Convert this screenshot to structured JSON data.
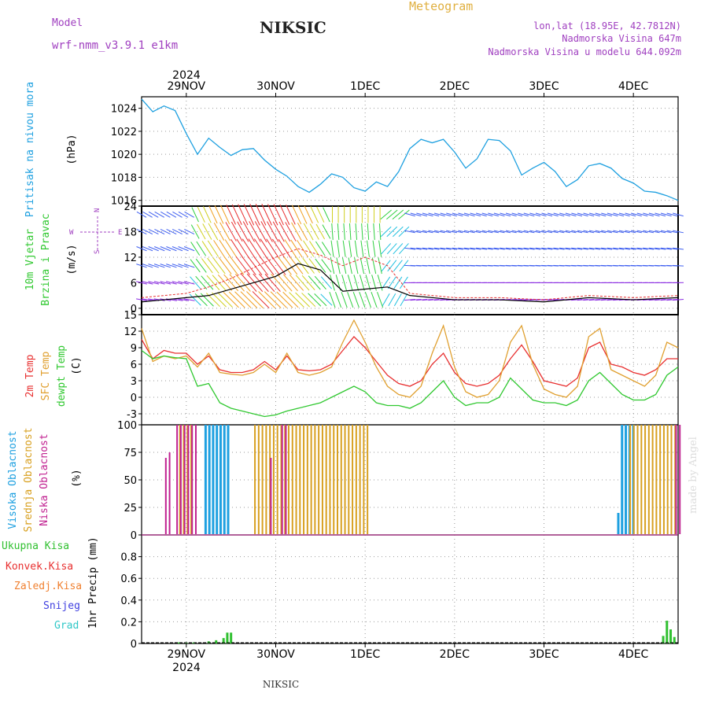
{
  "header": {
    "model_label": "Model",
    "model_name": "wrf-nmm_v3.9.1 e1km",
    "station": "NIKSIC",
    "title": "Meteogram",
    "coords": "lon,lat (18.95E, 42.7812N)",
    "elevation": "Nadmorska Visina 647m",
    "model_elevation": "Nadmorska Visina u modelu 644.092m",
    "footer_station": "NIKSIC",
    "credit": "made by Angel"
  },
  "colors": {
    "pressure": "#1ea0e0",
    "temp2m": "#e83030",
    "sfc_temp": "#e0a030",
    "dewpt": "#30c830",
    "cloud_high": "#1ea0e0",
    "cloud_mid": "#d8a020",
    "cloud_low": "#c02090",
    "precip": "#30c030",
    "wind_speed": "#000000",
    "gust": "#e83030",
    "header_purple": "#a040c0",
    "header_orange": "#e0b040"
  },
  "chart_data": [
    {
      "id": "pressure",
      "type": "line",
      "ylabel": "Pritisak na nivou mora",
      "unit": "(hPa)",
      "ylim": [
        1015.5,
        1025
      ],
      "yticks": [
        1016,
        1018,
        1020,
        1022,
        1024
      ],
      "x_hours": [
        0,
        3,
        6,
        9,
        12,
        15,
        18,
        21,
        24,
        27,
        30,
        33,
        36,
        39,
        42,
        45,
        48,
        51,
        54,
        57,
        60,
        63,
        66,
        69,
        72,
        75,
        78,
        81,
        84,
        87,
        90,
        93,
        96,
        99,
        102,
        105,
        108,
        111,
        114,
        117,
        120,
        123,
        126,
        129,
        132,
        135,
        138,
        141,
        144
      ],
      "values": [
        1024.8,
        1023.7,
        1024.2,
        1023.8,
        1021.8,
        1020.0,
        1021.4,
        1020.6,
        1019.9,
        1020.4,
        1020.5,
        1019.5,
        1018.7,
        1018.1,
        1017.2,
        1016.7,
        1017.4,
        1018.3,
        1018.0,
        1017.1,
        1016.8,
        1017.6,
        1017.2,
        1018.5,
        1020.5,
        1021.3,
        1021.0,
        1021.3,
        1020.2,
        1018.8,
        1019.6,
        1021.3,
        1021.2,
        1020.3,
        1018.2,
        1018.8,
        1019.3,
        1018.5,
        1017.2,
        1017.8,
        1019.0,
        1019.2,
        1018.8,
        1017.9,
        1017.5,
        1016.8,
        1016.7,
        1016.4,
        1016.0
      ]
    },
    {
      "id": "wind",
      "type": "line",
      "ylabel": "10m Vjetar Brzina i Pravac",
      "unit": "(m/s)",
      "ylim": [
        -1.5,
        24
      ],
      "yticks": [
        0,
        6,
        12,
        18,
        24
      ],
      "legend": [
        "W",
        "S",
        "N",
        "E"
      ],
      "x_hours": [
        0,
        6,
        12,
        18,
        24,
        30,
        36,
        42,
        48,
        54,
        60,
        66,
        72,
        84,
        96,
        108,
        120,
        132,
        144
      ],
      "values": [
        1.5,
        2.0,
        2.5,
        3.0,
        4.5,
        6.0,
        7.5,
        10.5,
        9.0,
        4.0,
        4.5,
        5.0,
        3.0,
        2.0,
        2.0,
        1.5,
        2.5,
        2.0,
        2.5
      ],
      "gust": [
        2.5,
        3.0,
        3.5,
        5.0,
        7.0,
        9.5,
        12.0,
        14.0,
        12.5,
        10.0,
        12.0,
        10.0,
        3.5,
        2.5,
        2.5,
        2.0,
        3.0,
        2.5,
        3.0
      ]
    },
    {
      "id": "temperature",
      "type": "line",
      "ylabel": "2m Temp",
      "ylabel2": "SFC Temp",
      "ylabel3": "dewpt Temp",
      "unit": "(C)",
      "ylim": [
        -5,
        15
      ],
      "yticks": [
        -3,
        0,
        3,
        6,
        9,
        12,
        15
      ],
      "x_hours": [
        0,
        3,
        6,
        9,
        12,
        15,
        18,
        21,
        24,
        27,
        30,
        33,
        36,
        39,
        42,
        45,
        48,
        51,
        54,
        57,
        60,
        63,
        66,
        69,
        72,
        75,
        78,
        81,
        84,
        87,
        90,
        93,
        96,
        99,
        102,
        105,
        108,
        111,
        114,
        117,
        120,
        123,
        126,
        129,
        132,
        135,
        138,
        141,
        144
      ],
      "series": [
        {
          "name": "2m Temp",
          "values": [
            10.5,
            7.0,
            8.5,
            8.0,
            8.0,
            6.0,
            7.5,
            5.0,
            4.5,
            4.5,
            5.0,
            6.5,
            5.0,
            7.5,
            5.0,
            4.8,
            5.0,
            6.0,
            8.5,
            11.0,
            9.0,
            6.5,
            4.0,
            2.5,
            2.0,
            3.0,
            6.0,
            8.0,
            4.5,
            2.5,
            2.0,
            2.5,
            4.0,
            7.0,
            9.5,
            6.5,
            3.0,
            2.5,
            2.0,
            3.5,
            9.0,
            10.0,
            6.0,
            5.5,
            4.5,
            4.0,
            5.0,
            7.0,
            7.0
          ]
        },
        {
          "name": "SFC Temp",
          "values": [
            12.5,
            6.5,
            7.5,
            7.0,
            7.5,
            5.5,
            8.0,
            4.5,
            4.2,
            4.0,
            4.5,
            6.0,
            4.5,
            8.0,
            4.5,
            4.0,
            4.5,
            5.5,
            10.0,
            14.0,
            10.0,
            5.5,
            2.0,
            0.5,
            0.0,
            2.0,
            8.0,
            13.0,
            5.5,
            1.0,
            0.0,
            0.5,
            3.0,
            10.0,
            13.0,
            6.0,
            1.5,
            0.5,
            0.0,
            2.0,
            11.0,
            12.5,
            5.0,
            4.0,
            3.0,
            2.0,
            4.0,
            10.0,
            9.0
          ]
        },
        {
          "name": "dewpt Temp",
          "values": [
            8.5,
            7.0,
            7.5,
            7.2,
            7.0,
            2.0,
            2.5,
            -1.0,
            -2.0,
            -2.5,
            -3.0,
            -3.5,
            -3.2,
            -2.5,
            -2.0,
            -1.5,
            -1.0,
            0.0,
            1.0,
            2.0,
            1.0,
            -1.0,
            -1.5,
            -1.5,
            -2.0,
            -1.0,
            1.0,
            3.0,
            0.0,
            -1.5,
            -1.0,
            -1.0,
            0.0,
            3.5,
            1.5,
            -0.5,
            -1.0,
            -1.0,
            -1.5,
            -0.5,
            3.0,
            4.5,
            2.5,
            0.5,
            -0.5,
            -0.5,
            0.5,
            4.0,
            5.5
          ]
        }
      ]
    },
    {
      "id": "cloud",
      "type": "bar",
      "ylabel": "Visoka Oblacnost",
      "ylabel2": "Srednja Oblacnost",
      "ylabel3": "Niska Oblacnost",
      "unit": "(%)",
      "ylim": [
        0,
        100
      ],
      "yticks": [
        0,
        25,
        50,
        75,
        100
      ],
      "series": [
        {
          "name": "Visoka Oblacnost",
          "values": [
            0,
            0,
            0,
            0,
            0,
            0,
            0,
            0,
            0,
            0,
            0,
            0,
            0,
            0,
            0,
            0,
            0,
            100,
            100,
            100,
            100,
            100,
            100,
            100,
            0,
            0,
            0,
            0,
            0,
            0,
            0,
            0,
            0,
            0,
            0,
            0,
            0,
            0,
            0,
            0,
            0,
            0,
            0,
            0,
            0,
            0,
            0,
            0,
            0,
            0,
            0,
            0,
            0,
            0,
            0,
            0,
            0,
            0,
            0,
            0,
            0,
            0,
            0,
            0,
            0,
            0,
            0,
            0,
            0,
            0,
            0,
            0,
            0,
            0,
            0,
            0,
            0,
            0,
            0,
            0,
            0,
            0,
            0,
            0,
            0,
            0,
            0,
            0,
            0,
            0,
            0,
            0,
            0,
            0,
            0,
            0,
            0,
            0,
            0,
            0,
            0,
            0,
            0,
            0,
            0,
            0,
            0,
            0,
            0,
            0,
            0,
            0,
            0,
            0,
            0,
            0,
            0,
            0,
            0,
            0,
            0,
            0,
            0,
            0,
            0,
            0,
            0,
            20,
            100,
            100,
            100,
            100,
            0,
            0,
            0,
            0,
            0,
            0,
            0,
            0,
            0,
            0,
            0,
            0
          ]
        },
        {
          "name": "Srednja Oblacnost",
          "values": [
            0,
            0,
            0,
            0,
            0,
            0,
            0,
            0,
            0,
            0,
            100,
            100,
            100,
            100,
            0,
            0,
            0,
            0,
            0,
            0,
            0,
            0,
            0,
            0,
            0,
            0,
            0,
            0,
            0,
            0,
            100,
            100,
            100,
            100,
            100,
            100,
            100,
            100,
            100,
            100,
            100,
            100,
            100,
            100,
            100,
            100,
            100,
            100,
            100,
            100,
            100,
            100,
            100,
            100,
            100,
            100,
            100,
            100,
            100,
            100,
            100,
            0,
            0,
            0,
            0,
            0,
            0,
            0,
            0,
            0,
            0,
            0,
            0,
            0,
            0,
            0,
            0,
            0,
            0,
            0,
            0,
            0,
            0,
            0,
            0,
            0,
            0,
            0,
            0,
            0,
            0,
            0,
            0,
            0,
            0,
            0,
            0,
            0,
            0,
            0,
            0,
            0,
            0,
            0,
            0,
            0,
            0,
            0,
            0,
            0,
            0,
            0,
            0,
            0,
            0,
            0,
            0,
            0,
            0,
            0,
            0,
            0,
            0,
            0,
            0,
            0,
            0,
            0,
            0,
            0,
            100,
            100,
            100,
            100,
            100,
            100,
            100,
            100,
            100,
            100,
            100,
            100,
            100,
            0
          ]
        },
        {
          "name": "Niska Oblacnost",
          "values": [
            0,
            0,
            0,
            0,
            0,
            0,
            70,
            75,
            0,
            100,
            100,
            100,
            100,
            100,
            100,
            0,
            0,
            0,
            0,
            0,
            0,
            0,
            0,
            0,
            0,
            0,
            0,
            0,
            0,
            0,
            0,
            0,
            0,
            0,
            70,
            0,
            0,
            100,
            100,
            0,
            0,
            0,
            0,
            0,
            0,
            0,
            0,
            0,
            0,
            0,
            0,
            0,
            0,
            0,
            0,
            0,
            0,
            0,
            0,
            0,
            0,
            0,
            0,
            0,
            0,
            0,
            0,
            0,
            0,
            0,
            0,
            0,
            0,
            0,
            0,
            0,
            0,
            0,
            0,
            0,
            0,
            0,
            0,
            0,
            0,
            0,
            0,
            0,
            0,
            0,
            0,
            0,
            0,
            0,
            0,
            0,
            0,
            0,
            0,
            0,
            0,
            0,
            0,
            0,
            0,
            0,
            0,
            0,
            0,
            0,
            0,
            0,
            0,
            0,
            0,
            0,
            0,
            0,
            0,
            0,
            0,
            0,
            0,
            0,
            0,
            0,
            0,
            0,
            0,
            0,
            0,
            0,
            0,
            0,
            0,
            0,
            0,
            0,
            0,
            0,
            0,
            0,
            100,
            100
          ]
        }
      ]
    },
    {
      "id": "precip",
      "type": "bar",
      "ylabel": "1hr Precip",
      "unit": "(mm)",
      "ylim": [
        0,
        1.0
      ],
      "yticks": [
        0,
        0.2,
        0.4,
        0.6,
        0.8
      ],
      "legend": [
        "Ukupna Kisa",
        "Konvek.Kisa",
        "Zaledj.Kisa",
        "Snijeg",
        "Grad"
      ],
      "legend_colors": [
        "#30c030",
        "#e83030",
        "#f08030",
        "#4040e0",
        "#30c8c8"
      ],
      "x_hours": [
        10,
        12,
        14,
        18,
        20,
        22,
        23,
        24,
        140,
        141,
        142,
        143
      ],
      "values": [
        0.01,
        0.01,
        0.01,
        0.02,
        0.03,
        0.05,
        0.1,
        0.1,
        0.07,
        0.21,
        0.13,
        0.06
      ]
    }
  ],
  "time_axis": {
    "year": "2024",
    "labels": [
      "29NOV",
      "30NOV",
      "1DEC",
      "2DEC",
      "3DEC",
      "4DEC"
    ]
  }
}
